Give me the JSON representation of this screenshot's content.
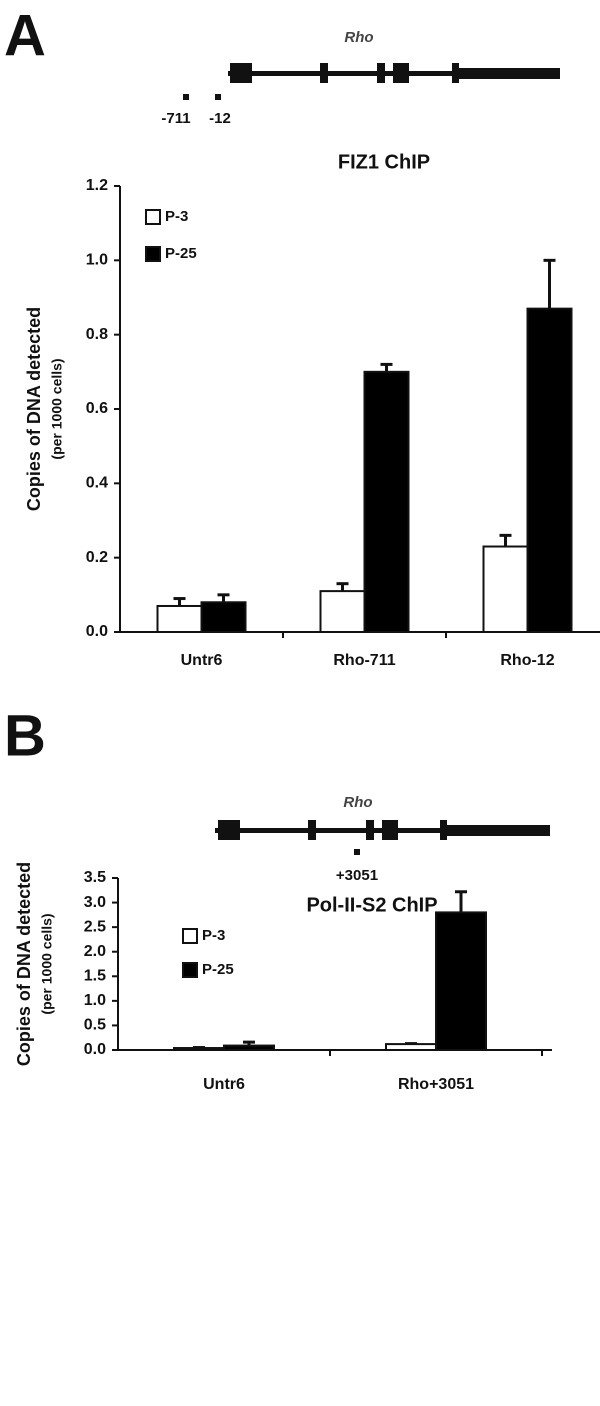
{
  "chart_data": [
    {
      "type": "bar",
      "panel_label": "A",
      "gene": "Rho",
      "site_labels": [
        "-711",
        "-12"
      ],
      "title": "FIZ1 ChIP",
      "ylabel": "Copies of DNA detected",
      "ylabel_sub": "(per 1000 cells)",
      "categories": [
        "Untr6",
        "Rho-711",
        "Rho-12"
      ],
      "series": [
        {
          "name": "P-3",
          "color": "#ffffff",
          "values": [
            0.07,
            0.11,
            0.23
          ],
          "errors": [
            0.02,
            0.02,
            0.03
          ]
        },
        {
          "name": "P-25",
          "color": "#000000",
          "values": [
            0.08,
            0.7,
            0.87
          ],
          "errors": [
            0.02,
            0.02,
            0.13
          ]
        }
      ],
      "ylim": [
        0,
        1.2
      ],
      "yticks": [
        {
          "value": 0,
          "label": "0.0"
        },
        0.2,
        0.4,
        0.6,
        0.8,
        {
          "value": 1,
          "label": "1.0"
        },
        1.2
      ],
      "legend": "top-left"
    },
    {
      "type": "bar",
      "panel_label": "B",
      "gene": "Rho",
      "site_labels": [
        "+3051"
      ],
      "title": "Pol-II-S2 ChIP",
      "ylabel": "Copies of DNA detected",
      "ylabel_sub": "(per 1000 cells)",
      "categories": [
        "Untr6",
        "Rho+3051"
      ],
      "series": [
        {
          "name": "P-3",
          "color": "#ffffff",
          "values": [
            0.04,
            0.12
          ],
          "errors": [
            0.01,
            0.01
          ]
        },
        {
          "name": "P-25",
          "color": "#000000",
          "values": [
            0.09,
            2.8
          ],
          "errors": [
            0.07,
            0.42
          ]
        }
      ],
      "ylim": [
        0,
        3.5
      ],
      "yticks": [
        {
          "value": 0,
          "label": "0.0"
        },
        0.5,
        {
          "value": 1,
          "label": "1.0"
        },
        1.5,
        {
          "value": 2,
          "label": "2.0"
        },
        2.5,
        {
          "value": 3,
          "label": "3.0"
        },
        3.5
      ],
      "legend": "top-left"
    }
  ]
}
